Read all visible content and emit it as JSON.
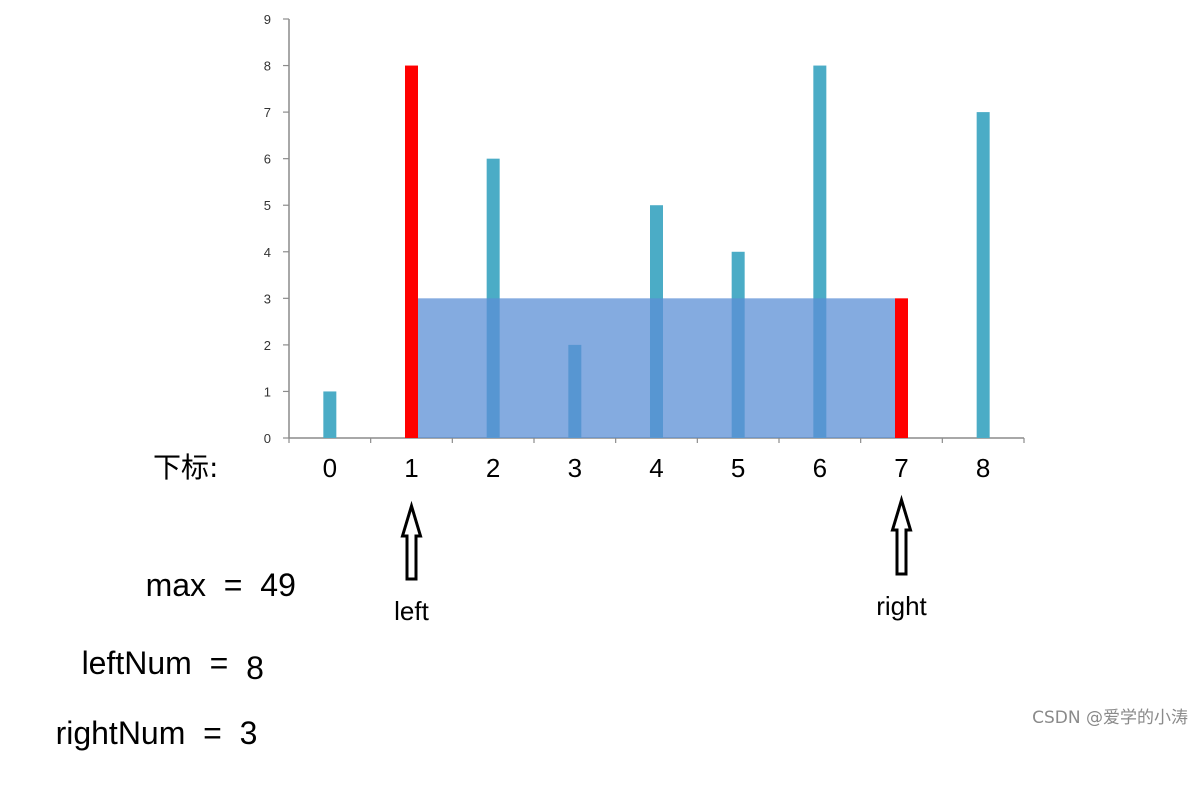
{
  "chart_data": {
    "type": "bar",
    "index_label": "下标:",
    "categories": [
      "0",
      "1",
      "2",
      "3",
      "4",
      "5",
      "6",
      "7",
      "8"
    ],
    "values": [
      1,
      8,
      6,
      2,
      5,
      4,
      8,
      3,
      7
    ],
    "yticks": [
      "0",
      "1",
      "2",
      "3",
      "4",
      "5",
      "6",
      "7",
      "8",
      "9"
    ],
    "ylim": [
      0,
      9
    ],
    "highlight_indices": [
      1,
      7
    ],
    "water_area": {
      "from_index": 1,
      "to_index": 7,
      "height": 3
    },
    "colors": {
      "bar": "#4bacc6",
      "highlight": "#ff0000",
      "area": "#5b8fd6",
      "axis": "#8c8c8c"
    },
    "markers": [
      {
        "index": 1,
        "label": "left"
      },
      {
        "index": 7,
        "label": "right"
      }
    ]
  },
  "variables": {
    "max": {
      "name": "max",
      "eq": "=",
      "value": "49"
    },
    "leftNum": {
      "name": "leftNum",
      "eq": "=",
      "value": "8"
    },
    "rightNum": {
      "name": "rightNum",
      "eq": "=",
      "value": "3"
    }
  },
  "watermark": "CSDN @爱学的小涛"
}
